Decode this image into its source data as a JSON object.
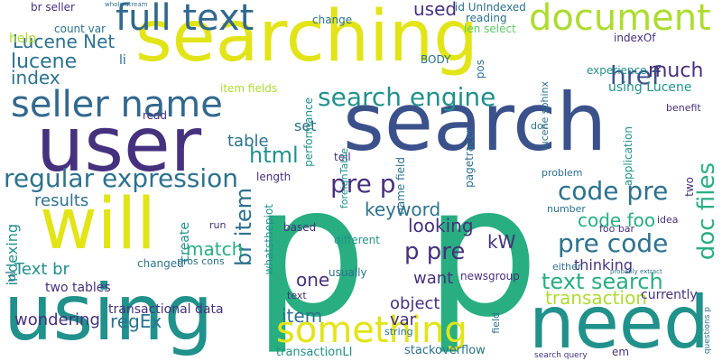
{
  "palette": {
    "dark_purple": "#46317e",
    "indigo": "#3b518b",
    "blue": "#31688e",
    "teal_blue": "#2c728e",
    "teal": "#21918c",
    "green": "#28ae80",
    "light_green": "#5ec962",
    "lime": "#addc30",
    "yellow": "#e2e418",
    "purple": "#482475"
  },
  "words": {
    "w01": "searching",
    "w02": "search",
    "w03": "p p",
    "w04": "using",
    "w05": "user",
    "w06": "need",
    "w07": "will",
    "w08": "full text",
    "w09": "document",
    "w10": "seller name",
    "w11": "something",
    "w12": "search engine",
    "w13": "regular expression",
    "w14": "pre p",
    "w15": "code pre",
    "w16": "pre code",
    "w17": "p pre",
    "w18": "text search",
    "w19": "html",
    "w20": "doc files",
    "w21": "br item",
    "w22": "href",
    "w23": "much",
    "w24": "index",
    "w25": "lucene",
    "w26": "Lucene Net",
    "w27": "used",
    "w28": "code foo",
    "w29": "transaction",
    "w30": "keyword",
    "w31": "looking",
    "w32": "item",
    "w33": "match",
    "w34": "Text br",
    "w35": "results",
    "w36": "wondering",
    "w37": "regEx",
    "w38": "kW",
    "w39": "want",
    "w40": "object",
    "w41": "one",
    "w42": "var",
    "w43": "table",
    "w44": "set",
    "w45": "using Lucene",
    "w46": "thinking",
    "w47": "currently",
    "w48": "create",
    "w49": "two tables",
    "w50": "transactional data",
    "w51": "stackoverflow",
    "w52": "transactionLI",
    "w53": "em",
    "w54": "search query",
    "w55": "newsgroup",
    "w56": "pagetracer",
    "w57": "help",
    "w58": "li",
    "w59": "count var",
    "w60": "br seller",
    "w61": "whole stream",
    "w62": "len select",
    "w63": "id UnIndexed",
    "w64": "reading",
    "w65": "change",
    "w66": "indexOf",
    "w67": "experience",
    "w68": "application",
    "w69": "BODY",
    "w70": "pos",
    "w71": "read",
    "w72": "performance",
    "w73": "item fields",
    "w74": "tell",
    "w75": "length",
    "w76": "based",
    "w77": "different",
    "w78": "usually",
    "w79": "name field",
    "w80": "foreignTable",
    "w81": "whatsthepiot",
    "w82": "changed",
    "w83": "pros cons",
    "w84": "run",
    "w85": "indexing",
    "w86": "ul",
    "w87": "number",
    "w88": "problem",
    "w89": "foo bar",
    "w90": "idea",
    "w91": "either",
    "w92": "two",
    "w93": "benefit",
    "w94": "string",
    "w95": "text",
    "w96": "field",
    "w97": "lucene sphinx",
    "w98": "doc",
    "w99": "questions p",
    "w100": "probably extract"
  }
}
